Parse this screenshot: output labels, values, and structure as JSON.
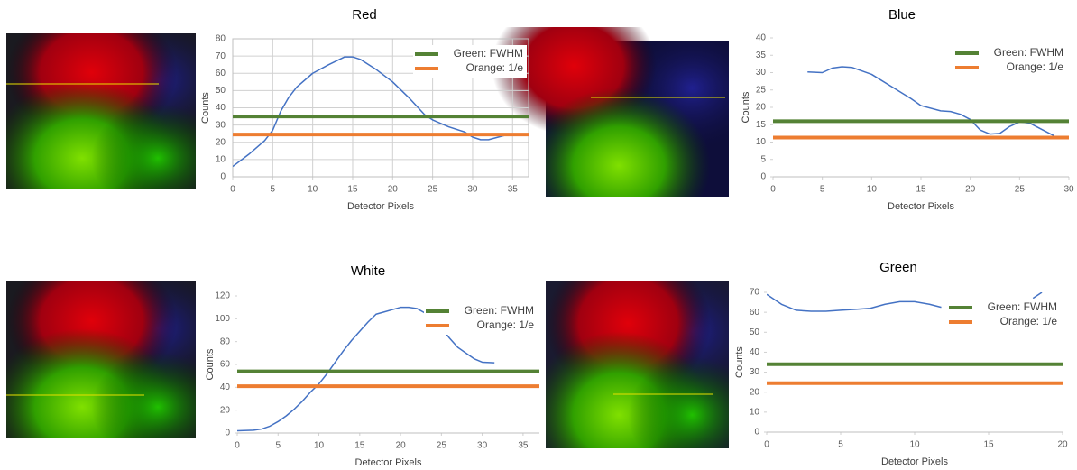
{
  "chart_data": [
    {
      "type": "line",
      "title": "Red",
      "x_label": "Detector Pixels",
      "y_label": "Counts",
      "x": [
        0,
        2,
        4,
        5,
        6,
        7,
        8,
        10,
        12,
        14,
        15,
        16,
        18,
        20,
        22,
        24,
        25,
        27,
        29,
        30,
        31,
        32,
        34,
        35
      ],
      "series": [
        {
          "color": "#4472c4",
          "values": [
            6,
            13,
            21,
            27,
            38,
            46,
            52,
            60,
            65,
            69.5,
            69.5,
            68,
            62,
            55,
            46,
            36,
            33,
            29,
            26,
            23,
            21.5,
            21.5,
            24,
            25
          ]
        }
      ],
      "reference_lines": [
        {
          "name": "Green: FWHM",
          "color": "#548235",
          "value": 35
        },
        {
          "name": "Orange: 1/e",
          "color": "#ed7d31",
          "value": 24.5
        }
      ],
      "xlim": [
        0,
        37
      ],
      "xticks": [
        0,
        5,
        10,
        15,
        20,
        25,
        30,
        35
      ],
      "ylim": [
        0,
        80
      ],
      "yticks": [
        0,
        10,
        20,
        30,
        40,
        50,
        60,
        70,
        80
      ],
      "grid": "both",
      "legend": "top-right"
    },
    {
      "type": "line",
      "title": "Blue",
      "x_label": "Detector Pixels",
      "y_label": "Counts",
      "x": [
        3.5,
        5,
        6,
        7,
        8,
        10,
        12,
        14,
        15,
        17,
        18,
        19,
        20,
        21,
        22,
        23,
        24,
        25,
        26,
        27,
        28.5
      ],
      "series": [
        {
          "color": "#4472c4",
          "values": [
            30.2,
            30,
            31.3,
            31.7,
            31.5,
            29.5,
            26,
            22.5,
            20.5,
            19,
            18.8,
            18,
            16.5,
            13.5,
            12.3,
            12.5,
            14.5,
            15.8,
            15.5,
            14,
            11.8
          ]
        }
      ],
      "reference_lines": [
        {
          "name": "Green: FWHM",
          "color": "#548235",
          "value": 16
        },
        {
          "name": "Orange: 1/e",
          "color": "#ed7d31",
          "value": 11.3
        }
      ],
      "xlim": [
        0,
        30
      ],
      "xticks": [
        0,
        5,
        10,
        15,
        20,
        25,
        30
      ],
      "ylim": [
        0,
        40
      ],
      "yticks": [
        0,
        5,
        10,
        15,
        20,
        25,
        30,
        35,
        40
      ],
      "grid": "none",
      "legend": "top-right"
    },
    {
      "type": "line",
      "title": "White",
      "x_label": "Detector Pixels",
      "y_label": "Counts",
      "x": [
        0,
        2,
        3,
        4,
        5,
        6,
        7,
        8,
        9,
        10,
        11,
        12,
        13,
        14,
        15,
        16,
        17,
        18,
        19,
        20,
        21,
        22,
        23,
        25,
        26,
        27,
        28,
        29,
        30,
        31.5
      ],
      "series": [
        {
          "color": "#4472c4",
          "values": [
            2,
            2.5,
            3.5,
            6,
            10,
            15,
            21,
            28,
            36,
            43,
            52,
            62,
            72,
            81,
            89,
            97,
            104,
            106,
            108,
            110,
            110,
            109,
            105,
            92,
            83,
            75,
            70,
            65,
            62,
            61.5
          ]
        }
      ],
      "reference_lines": [
        {
          "name": "Green: FWHM",
          "color": "#548235",
          "value": 54
        },
        {
          "name": "Orange: 1/e",
          "color": "#ed7d31",
          "value": 41
        }
      ],
      "xlim": [
        0,
        37
      ],
      "xticks": [
        0,
        5,
        10,
        15,
        20,
        25,
        30,
        35
      ],
      "ylim": [
        0,
        120
      ],
      "yticks": [
        0,
        20,
        40,
        60,
        80,
        100,
        120
      ],
      "grid": "none",
      "legend": "top-right"
    },
    {
      "type": "line",
      "title": "Green",
      "x_label": "Detector Pixels",
      "y_label": "Counts",
      "x": [
        0,
        1,
        2,
        3,
        4,
        5,
        6,
        7,
        8,
        9,
        10,
        11,
        11.8,
        15,
        18,
        18.6
      ],
      "series": [
        {
          "color": "#4472c4",
          "values": [
            69,
            64,
            61,
            60.5,
            60.5,
            61,
            61.5,
            62,
            64,
            65.3,
            65.3,
            64,
            62.5,
            null,
            67,
            70
          ]
        }
      ],
      "reference_lines": [
        {
          "name": "Green: FWHM",
          "color": "#548235",
          "value": 34
        },
        {
          "name": "Orange: 1/e",
          "color": "#ed7d31",
          "value": 24.5
        }
      ],
      "xlim": [
        0,
        20
      ],
      "xticks": [
        0,
        5,
        10,
        15,
        20
      ],
      "ylim": [
        0,
        70
      ],
      "yticks": [
        0,
        10,
        20,
        30,
        40,
        50,
        60,
        70
      ],
      "grid": "none",
      "legend": "top-right"
    }
  ]
}
